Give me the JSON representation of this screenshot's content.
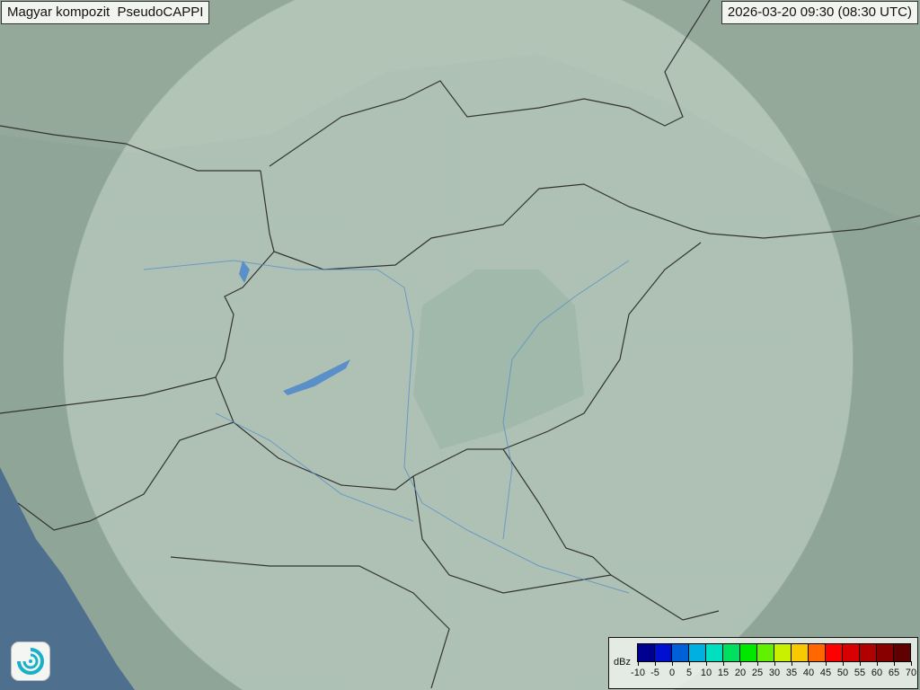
{
  "header": {
    "title": "Magyar kompozit  PseudoCAPPI",
    "timestamp": "2026-03-20 09:30 (08:30 UTC)"
  },
  "legend": {
    "unit": "dBz",
    "labels": [
      "-10",
      "-5",
      "0",
      "5",
      "10",
      "15",
      "20",
      "25",
      "30",
      "35",
      "40",
      "45",
      "50",
      "55",
      "60",
      "65",
      "70"
    ],
    "colors": [
      "#000090",
      "#0010d0",
      "#0060d8",
      "#00b0e0",
      "#00e0c0",
      "#00e060",
      "#00e800",
      "#60f000",
      "#c8f000",
      "#f8c800",
      "#ff6800",
      "#ff0000",
      "#d80000",
      "#b00000",
      "#880000",
      "#600000"
    ]
  },
  "map": {
    "base_color": "#8ea597",
    "radar_coverage_color": "#c8d8cc",
    "sea_color": "#4f6f8f",
    "border_color": "#333333",
    "river_color": "#5b8fc8"
  },
  "logo": {
    "icon": "weather-service-swirl-logo"
  }
}
